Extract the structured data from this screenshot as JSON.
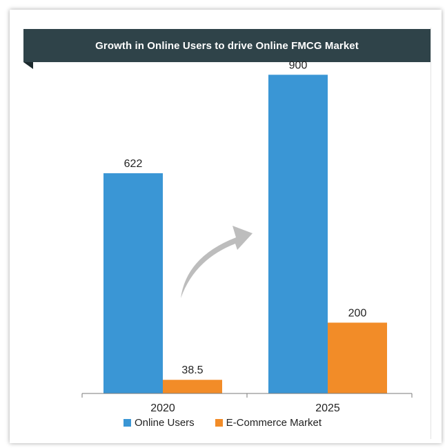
{
  "title": "Growth in Online Users to drive Online FMCG Market",
  "colors": {
    "online_users": "#3a96d5",
    "ecommerce": "#f28c28",
    "arrow": "#bdbdbd",
    "banner": "#2f4349"
  },
  "chart_data": {
    "type": "bar",
    "title": "Growth in Online Users to drive Online FMCG Market",
    "categories": [
      "2020",
      "2025"
    ],
    "series": [
      {
        "name": "Online Users",
        "values": [
          622,
          900
        ],
        "labels": [
          "622",
          "900"
        ]
      },
      {
        "name": "E-Commerce Market",
        "values": [
          38.5,
          200
        ],
        "labels": [
          "38.5",
          "200"
        ]
      }
    ],
    "ylim": [
      0,
      1000
    ],
    "grid": false,
    "legend": "bottom",
    "annotation": "growth-arrow"
  }
}
